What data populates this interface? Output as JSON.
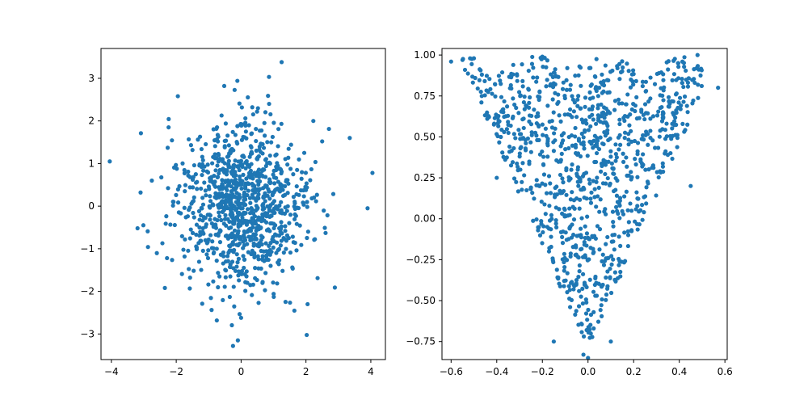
{
  "chart_data": [
    {
      "type": "scatter",
      "title": "",
      "xlabel": "",
      "ylabel": "",
      "grid": false,
      "xlim": [
        -4.32,
        4.45
      ],
      "ylim": [
        -3.6,
        3.7
      ],
      "x_ticks": [
        -4,
        -2,
        0,
        2,
        4
      ],
      "x_tick_labels": [
        "−4",
        "−2",
        "0",
        "2",
        "4"
      ],
      "y_ticks": [
        -3,
        -2,
        -1,
        0,
        1,
        2,
        3
      ],
      "y_tick_labels": [
        "−3",
        "−2",
        "−1",
        "0",
        "1",
        "2",
        "3"
      ],
      "marker_color": "#1f77b4",
      "distribution": "bivariate standard normal (about 1000 points)",
      "highlighted_points": [
        {
          "x": -4.05,
          "y": 1.05
        },
        {
          "x": 4.05,
          "y": 0.78
        },
        {
          "x": 1.25,
          "y": 3.38
        },
        {
          "x": -0.52,
          "y": 2.82
        },
        {
          "x": -1.95,
          "y": 2.58
        },
        {
          "x": 3.35,
          "y": 1.6
        },
        {
          "x": 3.9,
          "y": -0.05
        },
        {
          "x": -0.25,
          "y": -3.28
        },
        {
          "x": -0.1,
          "y": -3.15
        },
        {
          "x": 0.0,
          "y": -2.62
        },
        {
          "x": 2.05,
          "y": -2.3
        },
        {
          "x": -2.35,
          "y": -1.92
        },
        {
          "x": -3.1,
          "y": 0.32
        },
        {
          "x": 2.5,
          "y": 1.52
        }
      ]
    },
    {
      "type": "scatter",
      "title": "",
      "xlabel": "",
      "ylabel": "",
      "grid": false,
      "xlim": [
        -0.64,
        0.61
      ],
      "ylim": [
        -0.86,
        1.04
      ],
      "x_ticks": [
        -0.6,
        -0.4,
        -0.2,
        0.0,
        0.2,
        0.4,
        0.6
      ],
      "x_tick_labels": [
        "−0.6",
        "−0.4",
        "−0.2",
        "0.0",
        "0.2",
        "0.4",
        "0.6"
      ],
      "y_ticks": [
        -0.75,
        -0.5,
        -0.25,
        0.0,
        0.25,
        0.5,
        0.75,
        1.0
      ],
      "y_tick_labels": [
        "−0.75",
        "−0.50",
        "−0.25",
        "0.00",
        "0.25",
        "0.50",
        "0.75",
        "1.00"
      ],
      "marker_color": "#1f77b4",
      "distribution": "about 1000 points filling a V-shaped region whose lower boundary is y ≈ -0.8 + 3.2·|x| and upper edge ≈ 1.0",
      "highlighted_points": [
        {
          "x": -0.6,
          "y": 0.96
        },
        {
          "x": -0.55,
          "y": 0.97
        },
        {
          "x": -0.5,
          "y": 0.98
        },
        {
          "x": 0.48,
          "y": 1.0
        },
        {
          "x": 0.57,
          "y": 0.8
        },
        {
          "x": -0.2,
          "y": 0.99
        },
        {
          "x": -0.02,
          "y": -0.83
        },
        {
          "x": 0.0,
          "y": -0.85
        },
        {
          "x": -0.4,
          "y": 0.25
        },
        {
          "x": 0.45,
          "y": 0.2
        },
        {
          "x": -0.15,
          "y": -0.75
        },
        {
          "x": 0.1,
          "y": -0.75
        }
      ]
    }
  ]
}
